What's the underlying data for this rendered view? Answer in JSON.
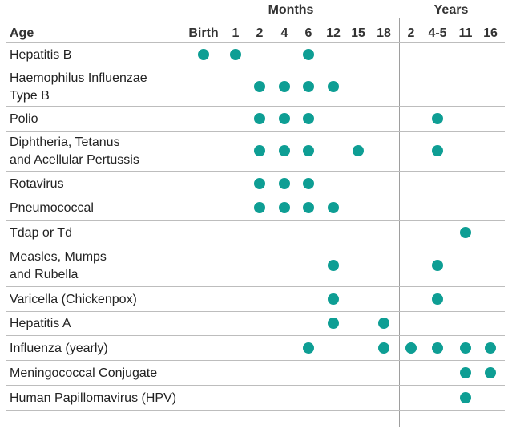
{
  "groups": [
    "Months",
    "Years"
  ],
  "row_header": "Age",
  "columns": [
    "Birth",
    "1",
    "2",
    "4",
    "6",
    "12",
    "15",
    "18",
    "2",
    "4-5",
    "11",
    "16"
  ],
  "rows": [
    {
      "label": "Hepatitis B",
      "doses": [
        true,
        true,
        false,
        false,
        true,
        false,
        false,
        false,
        false,
        false,
        false,
        false
      ]
    },
    {
      "label": "Haemophilus Influenzae\nType B",
      "doses": [
        false,
        false,
        true,
        true,
        true,
        true,
        false,
        false,
        false,
        false,
        false,
        false
      ]
    },
    {
      "label": "Polio",
      "doses": [
        false,
        false,
        true,
        true,
        true,
        false,
        false,
        false,
        false,
        true,
        false,
        false
      ]
    },
    {
      "label": "Diphtheria, Tetanus\nand Acellular Pertussis",
      "doses": [
        false,
        false,
        true,
        true,
        true,
        false,
        true,
        false,
        false,
        true,
        false,
        false
      ]
    },
    {
      "label": "Rotavirus",
      "doses": [
        false,
        false,
        true,
        true,
        true,
        false,
        false,
        false,
        false,
        false,
        false,
        false
      ]
    },
    {
      "label": "Pneumococcal",
      "doses": [
        false,
        false,
        true,
        true,
        true,
        true,
        false,
        false,
        false,
        false,
        false,
        false
      ]
    },
    {
      "label": "Tdap or Td",
      "doses": [
        false,
        false,
        false,
        false,
        false,
        false,
        false,
        false,
        false,
        false,
        true,
        false
      ]
    },
    {
      "label": "Measles, Mumps\nand Rubella",
      "doses": [
        false,
        false,
        false,
        false,
        false,
        true,
        false,
        false,
        false,
        true,
        false,
        false
      ]
    },
    {
      "label": "Varicella (Chickenpox)",
      "doses": [
        false,
        false,
        false,
        false,
        false,
        true,
        false,
        false,
        false,
        true,
        false,
        false
      ]
    },
    {
      "label": "Hepatitis A",
      "doses": [
        false,
        false,
        false,
        false,
        false,
        true,
        false,
        true,
        false,
        false,
        false,
        false
      ]
    },
    {
      "label": "Influenza (yearly)",
      "doses": [
        false,
        false,
        false,
        false,
        true,
        false,
        false,
        true,
        true,
        true,
        true,
        true
      ]
    },
    {
      "label": "Meningococcal Conjugate",
      "doses": [
        false,
        false,
        false,
        false,
        false,
        false,
        false,
        false,
        false,
        false,
        true,
        true
      ]
    },
    {
      "label": "Human Papillomavirus (HPV)",
      "doses": [
        false,
        false,
        false,
        false,
        false,
        false,
        false,
        false,
        false,
        false,
        true,
        false
      ]
    }
  ]
}
